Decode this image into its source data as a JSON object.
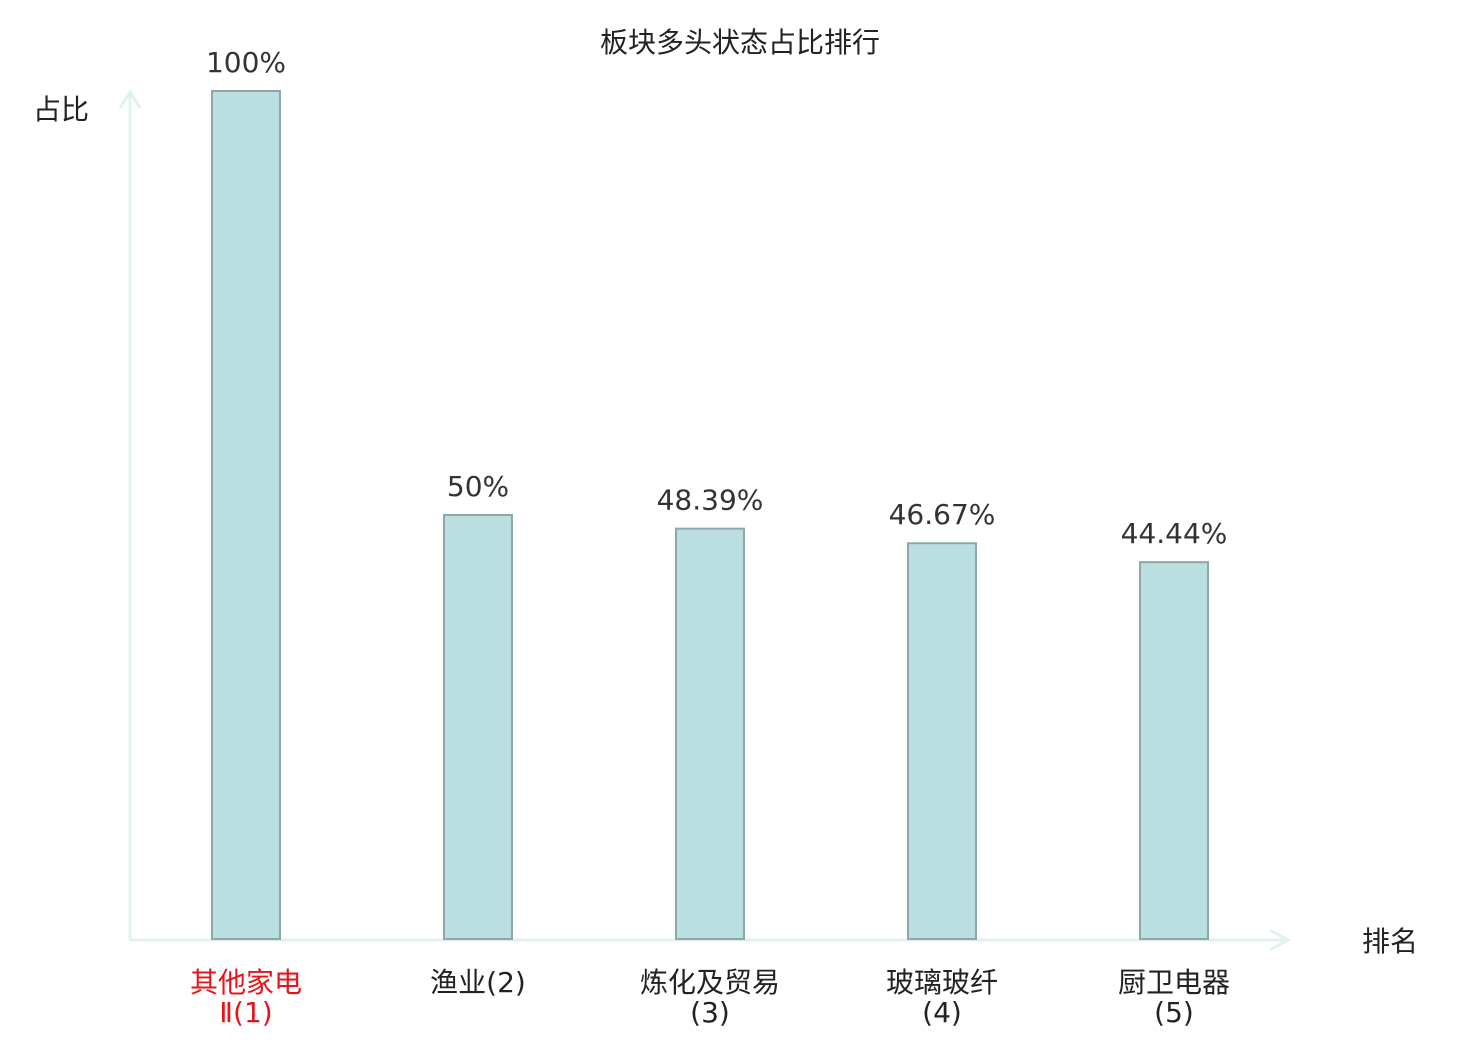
{
  "chart_data": {
    "type": "bar",
    "title": "板块多头状态占比排行",
    "xlabel": "排名",
    "ylabel": "占比",
    "categories": [
      "其他家电Ⅱ(1)",
      "渔业(2)",
      "炼化及贸易(3)",
      "玻璃玻纤(4)",
      "厨卫电器(5)"
    ],
    "highlight_index": 0,
    "values": [
      100,
      50,
      48.39,
      46.67,
      44.44
    ],
    "value_labels": [
      "100%",
      "50%",
      "48.39%",
      "46.67%",
      "44.44%"
    ],
    "ylim": [
      0,
      100
    ],
    "grid": false,
    "legend": "none",
    "colors": {
      "bar_fill": "#bbdfe1",
      "bar_stroke": "#8fa7a9",
      "axis": "#dff2ef",
      "text": "#222222",
      "highlight_text": "#e8141b"
    }
  }
}
